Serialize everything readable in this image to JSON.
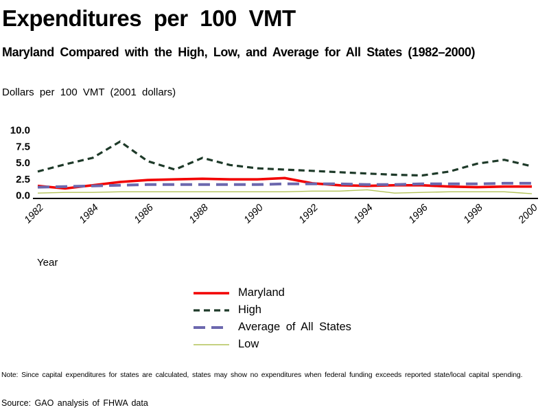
{
  "header": {
    "title": "Expenditures per 100 VMT",
    "subtitle": "Maryland Compared with the High, Low, and Average for All States (1982–2000)",
    "y_axis_title": "Dollars per 100 VMT (2001 dollars)"
  },
  "chart_data": {
    "type": "line",
    "title": "Expenditures per 100 VMT",
    "subtitle": "Maryland Compared with the High, Low, and Average for All States (1982–2000)",
    "ylabel": "Dollars per 100 VMT (2001 dollars)",
    "xlabel": "Year",
    "ylim": [
      0,
      10
    ],
    "yticks": [
      0.0,
      2.5,
      5.0,
      7.5,
      10.0
    ],
    "grid": false,
    "legend_position": "bottom-center",
    "x": [
      1982,
      1983,
      1984,
      1985,
      1986,
      1987,
      1988,
      1989,
      1990,
      1991,
      1992,
      1993,
      1994,
      1995,
      1996,
      1997,
      1998,
      1999,
      2000
    ],
    "xtick_labels": [
      "1982",
      "1984",
      "1986",
      "1988",
      "1990",
      "1992",
      "1994",
      "1996",
      "1998",
      "2000"
    ],
    "series": [
      {
        "name": "Maryland",
        "color": "#f20000",
        "style": "solid-thick",
        "values": [
          1.4,
          1.0,
          1.5,
          2.0,
          2.3,
          2.4,
          2.5,
          2.4,
          2.4,
          2.6,
          1.8,
          1.5,
          1.4,
          1.5,
          1.5,
          1.3,
          1.2,
          1.3,
          1.3
        ]
      },
      {
        "name": "High",
        "color": "#1e3a29",
        "style": "dashed",
        "values": [
          3.6,
          4.7,
          5.7,
          8.2,
          5.2,
          3.9,
          5.7,
          4.6,
          4.1,
          3.9,
          3.7,
          3.5,
          3.3,
          3.1,
          3.0,
          3.6,
          4.8,
          5.4,
          4.4
        ]
      },
      {
        "name": "Average of All States",
        "color": "#6c68ae",
        "style": "long-dash",
        "values": [
          1.2,
          1.3,
          1.4,
          1.5,
          1.6,
          1.6,
          1.6,
          1.6,
          1.6,
          1.7,
          1.7,
          1.7,
          1.6,
          1.6,
          1.7,
          1.7,
          1.7,
          1.8,
          1.8
        ]
      },
      {
        "name": "Low",
        "color": "#b2c257",
        "style": "solid-thin",
        "values": [
          0.3,
          0.4,
          0.4,
          0.5,
          0.5,
          0.5,
          0.5,
          0.5,
          0.5,
          0.5,
          0.6,
          0.6,
          0.8,
          0.3,
          0.4,
          0.5,
          0.5,
          0.5,
          0.2
        ]
      }
    ]
  },
  "footer": {
    "note": "Note: Since capital expenditures for states are calculated, states may show no expenditures when federal funding exceeds reported state/local capital spending.",
    "source": "Source: GAO analysis of FHWA data"
  }
}
